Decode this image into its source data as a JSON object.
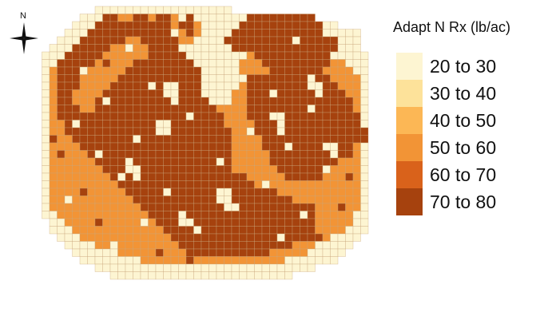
{
  "compass": {
    "north_label": "N",
    "icon": "compass-rose-icon"
  },
  "legend": {
    "title": "Adapt N Rx (lb/ac)",
    "classes": [
      {
        "label": "20 to 30",
        "color": "#fdf5d2"
      },
      {
        "label": "30 to 40",
        "color": "#fde29a"
      },
      {
        "label": "40 to 50",
        "color": "#fcb755"
      },
      {
        "label": "50 to 60",
        "color": "#f29436"
      },
      {
        "label": "60 to 70",
        "color": "#d9621b"
      },
      {
        "label": "70 to 80",
        "color": "#a6420e"
      }
    ]
  },
  "map": {
    "grid_line_color": "#c9a77c",
    "cells": [
      "........111111111111111111....................",
      "......1111144444444111111111111111111.........",
      ".....11144444444444444111111111111111111......",
      "....111444444444444444111111111111111111111...",
      "...1114444444444444441111111111111111111111...",
      "..11144444444444441111111111111111111111111...",
      ".1114444444444444111111111114444444444411111..",
      ".1144444444444441111111111144444444444444111..",
      ".1444444444444441111111111144444444444444411..",
      ".1444444444444411111111111144444444444444441..",
      ".1444444444444444411111111144444444444444441..",
      ".1444444444444444444111111444444444444444441..",
      ".1444444444444444444441111444444444444444441..",
      ".1444444444444444444444444444444444444444441..",
      ".1444444444444444444444444444444444444444441..",
      ".1444444444444444444444444444444444444444441..",
      ".1444444444444444444444444444444444444444441..",
      ".1444444444444444444444444444444444444444441..",
      ".1444444444444444444444444444444444444444441..",
      ".1444444444444444444444444444444444444444441..",
      ".1444444444444444444444444444444444444444441..",
      ".1444444444444444444444444444444444444444441..",
      ".1444444444444444444444444444444444444444441..",
      ".1444444444444444444444444444444444444444441..",
      ".1444444444444444444444444444444444444444441..",
      ".1444444444444444444444444444444444444444441..",
      ".1444444444444444444444444444444444444444441..",
      ".1144444444444444444444444444444444444444411..",
      "..114444444444444444444444444444444444444411..",
      "..111444444444444444444444444444444444444111..",
      "...1114444444444444444444444444444444441111...",
      "....11114444444444444444444444444444411111....",
      ".....111111444444444444444444444444411111.....",
      "......1111111144444444444444444441111111......",
      "........11111111111111111111111111111.........",
      "..........111111111111111111111111............"
    ],
    "overlay": [
      "..............................................",
      ".........66..66.66..6.......666666666.........",
      "........6666666666.66......66666666666........",
      ".......66666666666..6.....666666666666........",
      "......666666..66666.......66666666666666......",
      ".....66666.....6666........6666666666666......",
      "....6666.......66666.........66666666666......",
      "...66666.....66666666.........666666666.......",
      "...6666.....6666666666.........6666666........",
      "...666.....66666666666......66666666666.......",
      "...666....666666666666......666666666666......",
      "...66....6666666666666......6666666666666.....",
      "...66...666666666666666.....66666666666666....",
      "...666..6666666666666666....66666666666666....",
      "...6666666666666666666666...666666666666666...",
      "....666666666666666666666....66666666666666...",
      "....6666666666666666666666...666666666666666..",
      ".....666666666666666666666....66666666666666..",
      "......66666666666666666666....666666666666....",
      ".......6666666666666666666.....66666666666....",
      "........666666666666666666.....666666666......",
      ".........66666666666666666......6666666.......",
      "..........666666666666666666.....66666........",
      "...........666666666666666666.................",
      "............66666666666666666666..............",
      ".............666666666666666666666............",
      "..............66666666666666666666666.........",
      "...............6666666666666666666666.........",
      "................666666666666666666666.........",
      ".................66666666666666666666.........",
      "..................6666666666666666666.........",
      "...................666666666666666............",
      "....................66666666666...............",
      "..............................................",
      "..............................................",
      ".............................................."
    ],
    "speckles": [
      [
        2,
        3,
        "1"
      ],
      [
        3,
        18,
        "1"
      ],
      [
        4,
        34,
        "1"
      ],
      [
        5,
        12,
        "1"
      ],
      [
        6,
        39,
        "1"
      ],
      [
        7,
        22,
        "1"
      ],
      [
        8,
        6,
        "1"
      ],
      [
        9,
        27,
        "1"
      ],
      [
        10,
        15,
        "1"
      ],
      [
        11,
        31,
        "1"
      ],
      [
        12,
        9,
        "1"
      ],
      [
        13,
        36,
        "1"
      ],
      [
        14,
        20,
        "1"
      ],
      [
        15,
        5,
        "1"
      ],
      [
        16,
        28,
        "1"
      ],
      [
        17,
        13,
        "1"
      ],
      [
        18,
        33,
        "1"
      ],
      [
        19,
        8,
        "1"
      ],
      [
        20,
        24,
        "1"
      ],
      [
        21,
        38,
        "1"
      ],
      [
        22,
        11,
        "1"
      ],
      [
        23,
        30,
        "1"
      ],
      [
        24,
        17,
        "1"
      ],
      [
        25,
        4,
        "1"
      ],
      [
        26,
        26,
        "1"
      ],
      [
        27,
        35,
        "1"
      ],
      [
        28,
        14,
        "1"
      ],
      [
        29,
        21,
        "1"
      ],
      [
        30,
        32,
        "1"
      ],
      [
        31,
        10,
        "1"
      ],
      [
        10,
        17,
        "1"
      ],
      [
        10,
        18,
        "1"
      ],
      [
        11,
        17,
        "1"
      ],
      [
        11,
        18,
        "1"
      ],
      [
        12,
        18,
        "1"
      ],
      [
        15,
        16,
        "1"
      ],
      [
        15,
        17,
        "1"
      ],
      [
        16,
        16,
        "1"
      ],
      [
        16,
        17,
        "1"
      ],
      [
        20,
        12,
        "1"
      ],
      [
        21,
        12,
        "1"
      ],
      [
        21,
        13,
        "1"
      ],
      [
        22,
        13,
        "1"
      ],
      [
        24,
        24,
        "1"
      ],
      [
        24,
        25,
        "1"
      ],
      [
        25,
        24,
        "1"
      ],
      [
        25,
        25,
        "1"
      ],
      [
        26,
        25,
        "1"
      ],
      [
        9,
        36,
        "1"
      ],
      [
        10,
        36,
        "1"
      ],
      [
        10,
        37,
        "1"
      ],
      [
        11,
        37,
        "1"
      ],
      [
        14,
        31,
        "1"
      ],
      [
        14,
        32,
        "1"
      ],
      [
        15,
        32,
        "1"
      ],
      [
        16,
        32,
        "1"
      ],
      [
        18,
        38,
        "1"
      ],
      [
        18,
        39,
        "1"
      ],
      [
        19,
        39,
        "1"
      ],
      [
        27,
        19,
        "1"
      ],
      [
        28,
        19,
        "1"
      ],
      [
        28,
        20,
        "1"
      ],
      [
        6,
        8,
        "6"
      ],
      [
        7,
        9,
        "6"
      ],
      [
        8,
        33,
        "6"
      ],
      [
        12,
        40,
        "6"
      ],
      [
        19,
        3,
        "6"
      ],
      [
        24,
        6,
        "6"
      ],
      [
        26,
        40,
        "6"
      ],
      [
        28,
        8,
        "6"
      ],
      [
        30,
        37,
        "6"
      ],
      [
        32,
        16,
        "6"
      ],
      [
        22,
        41,
        "6"
      ],
      [
        17,
        2,
        "6"
      ],
      [
        4,
        25,
        "6"
      ],
      [
        5,
        26,
        "6"
      ],
      [
        3,
        14,
        "6"
      ],
      [
        31,
        28,
        "6"
      ],
      [
        29,
        31,
        "6"
      ],
      [
        33,
        20,
        "6"
      ]
    ]
  }
}
